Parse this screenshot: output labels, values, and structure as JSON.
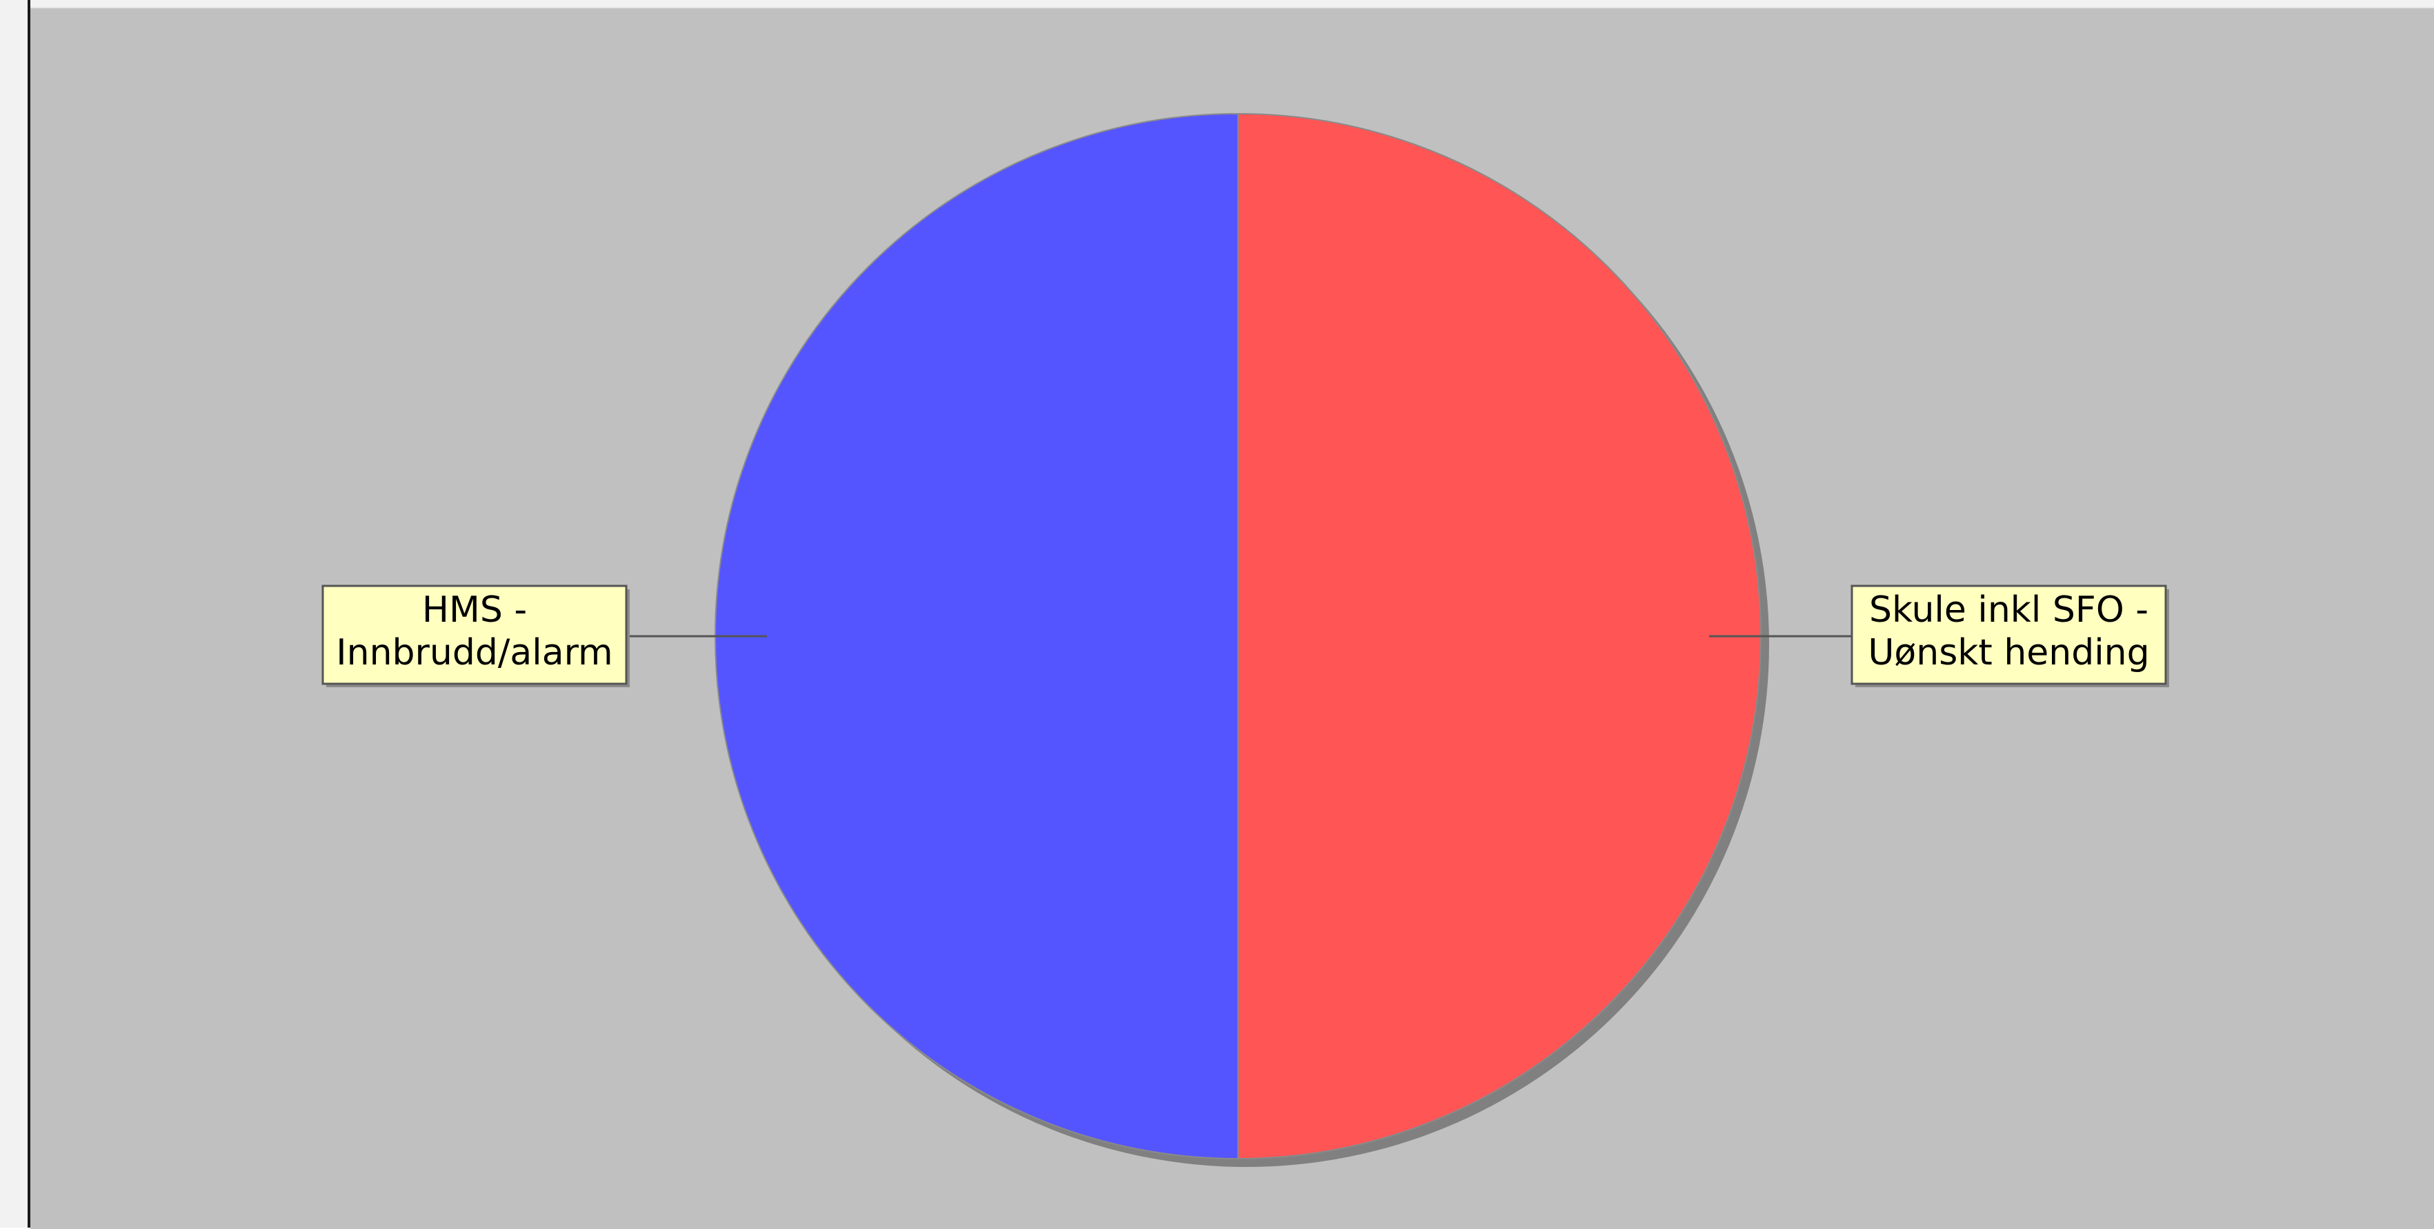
{
  "chart_data": {
    "type": "pie",
    "slices": [
      {
        "label_lines": [
          "Skule inkl SFO -",
          "Uønskt hending"
        ],
        "value": 50,
        "color": "#ff5555"
      },
      {
        "label_lines": [
          "HMS -",
          "Innbrudd/alarm"
        ],
        "value": 50,
        "color": "#5555ff"
      }
    ],
    "start_angle_deg": 90,
    "direction": "clockwise",
    "label_box_color": "#ffffc0",
    "plot_background": "#c0c0c0",
    "shadow_color": "#808080"
  }
}
